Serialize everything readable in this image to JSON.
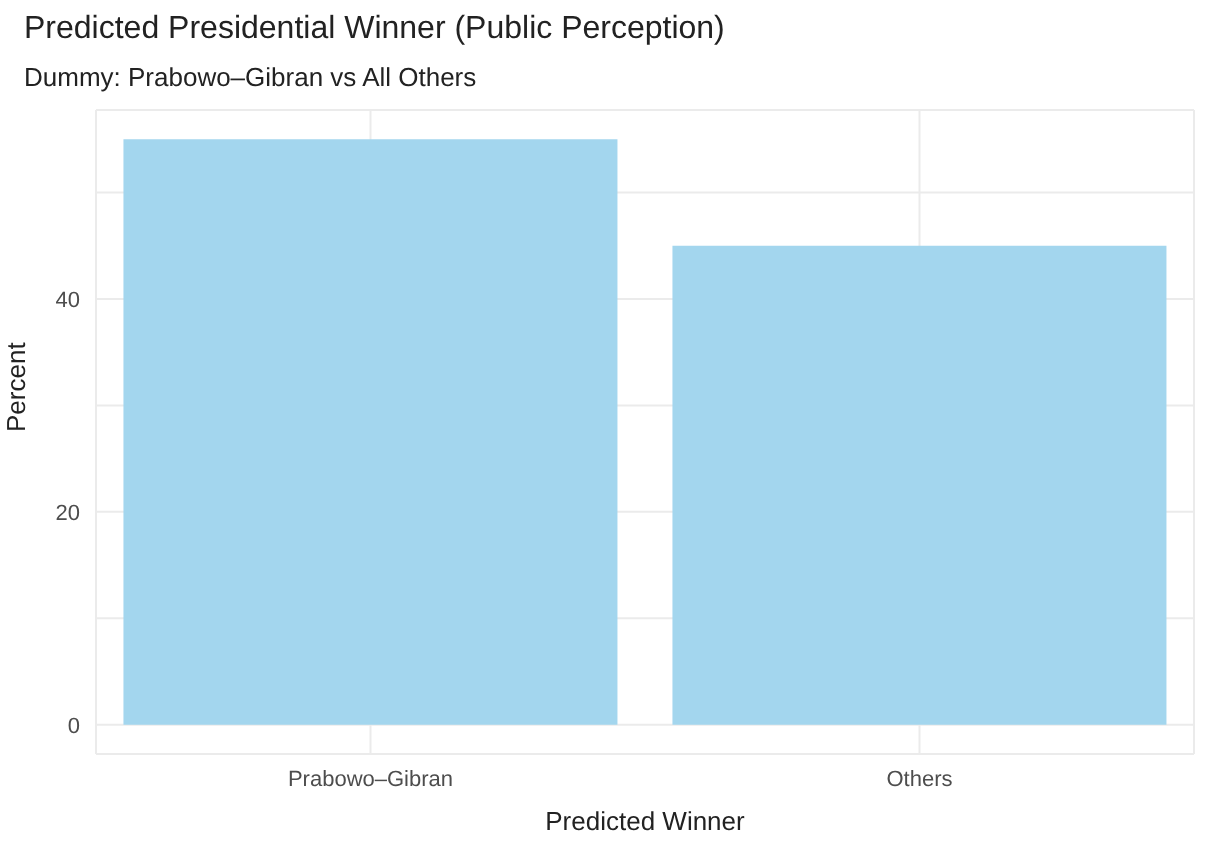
{
  "chart_data": {
    "type": "bar",
    "title": "Predicted Presidential Winner (Public Perception)",
    "subtitle": "Dummy: Prabowo–Gibran vs All Others",
    "xlabel": "Predicted Winner",
    "ylabel": "Percent",
    "categories": [
      "Prabowo–Gibran",
      "Others"
    ],
    "values": [
      55,
      45
    ],
    "color": "#a3d6ee",
    "ylim": [
      -2.75,
      57.75
    ],
    "yticks": [
      0,
      {
        "value": 10,
        "label": null
      },
      20,
      {
        "value": 30,
        "label": null
      },
      40,
      {
        "value": 50,
        "label": null
      }
    ],
    "grid": true
  }
}
